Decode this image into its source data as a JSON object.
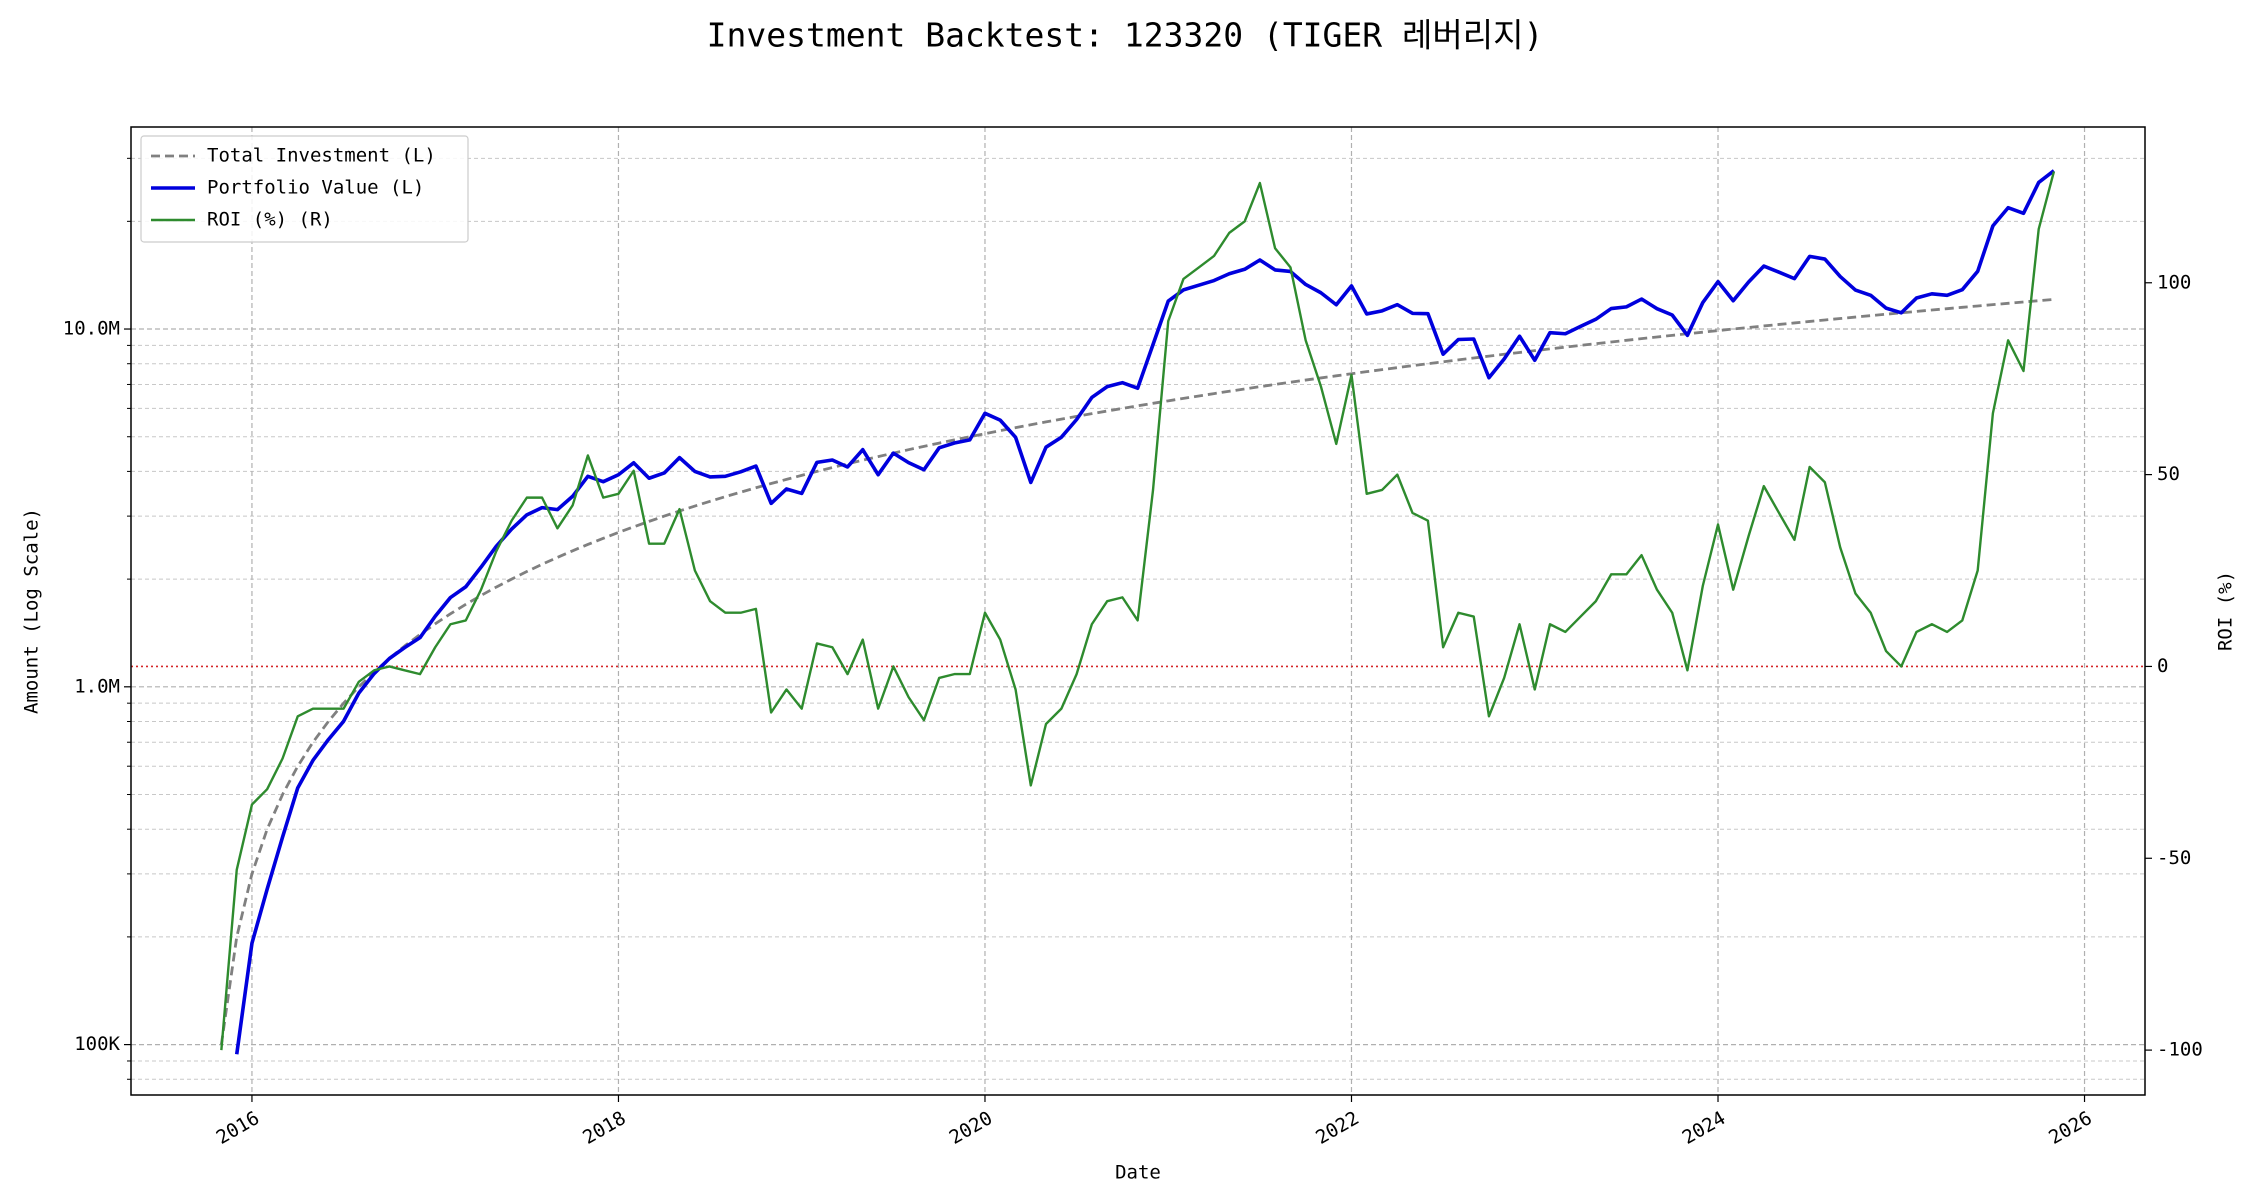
{
  "chart_data": {
    "type": "line",
    "title": "Investment Backtest: 123320 (TIGER 레버리지)",
    "x_label": "Date",
    "y_label": "Amount (Log Scale)",
    "y2_label": "ROI (%)",
    "x": [
      2015.833,
      2015.917,
      2016.0,
      2016.083,
      2016.167,
      2016.25,
      2016.333,
      2016.417,
      2016.5,
      2016.583,
      2016.667,
      2016.75,
      2016.833,
      2016.917,
      2017.0,
      2017.083,
      2017.167,
      2017.25,
      2017.333,
      2017.417,
      2017.5,
      2017.583,
      2017.667,
      2017.75,
      2017.833,
      2017.917,
      2018.0,
      2018.083,
      2018.167,
      2018.25,
      2018.333,
      2018.417,
      2018.5,
      2018.583,
      2018.667,
      2018.75,
      2018.833,
      2018.917,
      2019.0,
      2019.083,
      2019.167,
      2019.25,
      2019.333,
      2019.417,
      2019.5,
      2019.583,
      2019.667,
      2019.75,
      2019.833,
      2019.917,
      2020.0,
      2020.083,
      2020.167,
      2020.25,
      2020.333,
      2020.417,
      2020.5,
      2020.583,
      2020.667,
      2020.75,
      2020.833,
      2020.917,
      2021.0,
      2021.083,
      2021.167,
      2021.25,
      2021.333,
      2021.417,
      2021.5,
      2021.583,
      2021.667,
      2021.75,
      2021.833,
      2021.917,
      2022.0,
      2022.083,
      2022.167,
      2022.25,
      2022.333,
      2022.417,
      2022.5,
      2022.583,
      2022.667,
      2022.75,
      2022.833,
      2022.917,
      2023.0,
      2023.083,
      2023.167,
      2023.25,
      2023.333,
      2023.417,
      2023.5,
      2023.583,
      2023.667,
      2023.75,
      2023.833,
      2023.917,
      2024.0,
      2024.083,
      2024.167,
      2024.25,
      2024.333,
      2024.417,
      2024.5,
      2024.583,
      2024.667,
      2024.75,
      2024.833,
      2024.917,
      2025.0,
      2025.083,
      2025.167,
      2025.25,
      2025.333,
      2025.417,
      2025.5,
      2025.583,
      2025.667,
      2025.75,
      2025.833
    ],
    "series": [
      {
        "name": "Total Investment (L)",
        "color": "#808080",
        "dash": true,
        "axis": "y",
        "values": [
          100000,
          200000,
          300000,
          400000,
          500000,
          600000,
          700000,
          800000,
          900000,
          1000000,
          1100000,
          1200000,
          1300000,
          1400000,
          1500000,
          1600000,
          1700000,
          1800000,
          1900000,
          2000000,
          2100000,
          2200000,
          2300000,
          2400000,
          2500000,
          2600000,
          2700000,
          2800000,
          2900000,
          3000000,
          3100000,
          3200000,
          3300000,
          3400000,
          3500000,
          3600000,
          3700000,
          3800000,
          3900000,
          4000000,
          4100000,
          4200000,
          4300000,
          4400000,
          4500000,
          4600000,
          4700000,
          4800000,
          4900000,
          5000000,
          5100000,
          5200000,
          5300000,
          5400000,
          5500000,
          5600000,
          5700000,
          5800000,
          5900000,
          6000000,
          6100000,
          6200000,
          6300000,
          6400000,
          6500000,
          6600000,
          6700000,
          6800000,
          6900000,
          7000000,
          7100000,
          7200000,
          7300000,
          7400000,
          7500000,
          7600000,
          7700000,
          7800000,
          7900000,
          8000000,
          8100000,
          8200000,
          8300000,
          8400000,
          8500000,
          8600000,
          8700000,
          8800000,
          8900000,
          9000000,
          9100000,
          9200000,
          9300000,
          9400000,
          9500000,
          9600000,
          9700000,
          9800000,
          9900000,
          10000000,
          10100000,
          10200000,
          10300000,
          10400000,
          10500000,
          10600000,
          10700000,
          10800000,
          10900000,
          11000000,
          11100000,
          11200000,
          11300000,
          11400000,
          11500000,
          11600000,
          11700000,
          11800000,
          11900000,
          12000000,
          12100000
        ]
      },
      {
        "name": "Portfolio Value (L)",
        "color": "#0000dd",
        "axis": "y",
        "values": [
          null,
          94000,
          192000,
          272000,
          380000,
          522000,
          623000,
          712000,
          801000,
          960000,
          1089000,
          1200000,
          1287000,
          1372000,
          1575000,
          1776000,
          1904000,
          2160000,
          2470000,
          2760000,
          3024000,
          3168000,
          3128000,
          3408000,
          3875000,
          3744000,
          3915000,
          4228000,
          3828000,
          3960000,
          4371000,
          4000000,
          3861000,
          3876000,
          3990000,
          4140000,
          3256000,
          3572000,
          3471000,
          4240000,
          4305000,
          4116000,
          4601000,
          3916000,
          4500000,
          4232000,
          4042000,
          4656000,
          4802000,
          4900000,
          5814000,
          5564000,
          4982000,
          3726000,
          4675000,
          4984000,
          5586000,
          6438000,
          6903000,
          7080000,
          6832000,
          9052000,
          11970000,
          12864000,
          13260000,
          13662000,
          14271000,
          14688000,
          15594000,
          14630000,
          14484000,
          13320000,
          12629000,
          11692000,
          13200000,
          11020000,
          11242000,
          11700000,
          11060000,
          11040000,
          8505000,
          9348000,
          9379000,
          7308000,
          8245000,
          9546000,
          8178000,
          9768000,
          9701000,
          10170000,
          10647000,
          11408000,
          11532000,
          12126000,
          11400000,
          10944000,
          9603000,
          11858000,
          13563000,
          12000000,
          13534000,
          14994000,
          14420000,
          13832000,
          15960000,
          15688000,
          14017000,
          12852000,
          12426000,
          11440000,
          11100000,
          12208000,
          12543000,
          12426000,
          12880000,
          14500000,
          19422000,
          21830000,
          21063000,
          25680000,
          27709000
        ]
      },
      {
        "name": "ROI (%) (R)",
        "color": "#2e8b2e",
        "axis": "y2",
        "values": [
          -100,
          -53,
          -36,
          -32,
          -24,
          -13,
          -11,
          -11,
          -11,
          -4,
          -1,
          0,
          -1,
          -2,
          5,
          11,
          12,
          20,
          30,
          38,
          44,
          44,
          36,
          42,
          55,
          44,
          45,
          51,
          32,
          32,
          41,
          25,
          17,
          14,
          14,
          15,
          -12,
          -6,
          -11,
          6,
          5,
          -2,
          7,
          -11,
          0,
          -8,
          -14,
          -3,
          -2,
          -2,
          14,
          7,
          -6,
          -31,
          -15,
          -11,
          -2,
          11,
          17,
          18,
          12,
          46,
          90,
          101,
          104,
          107,
          113,
          116,
          126,
          109,
          104,
          85,
          73,
          58,
          76,
          45,
          46,
          50,
          40,
          38,
          5,
          14,
          13,
          -13,
          -3,
          11,
          -6,
          11,
          9,
          13,
          17,
          24,
          24,
          29,
          20,
          14,
          -1,
          21,
          37,
          20,
          34,
          47,
          40,
          33,
          52,
          48,
          31,
          19,
          14,
          4,
          0,
          9,
          11,
          9,
          12,
          25,
          66,
          85,
          77,
          114,
          129
        ]
      }
    ],
    "xlim": [
      2015.34,
      2026.33
    ],
    "xticks": [
      2016,
      2018,
      2020,
      2022,
      2024,
      2026
    ],
    "ylog": true,
    "ylim": [
      72300,
      36700000
    ],
    "y_color": "#0000dd",
    "yticks": [
      {
        "value": 100000,
        "label": "100K"
      },
      {
        "value": 1000000,
        "label": "1.0M"
      },
      {
        "value": 10000000,
        "label": "10.0M"
      }
    ],
    "yminorticks": [
      80000,
      90000,
      200000,
      300000,
      400000,
      500000,
      600000,
      700000,
      800000,
      900000,
      2000000,
      3000000,
      4000000,
      5000000,
      6000000,
      7000000,
      8000000,
      9000000,
      20000000,
      30000000
    ],
    "y2lim": [
      -111.7,
      140.6
    ],
    "y2ticks": [
      -100,
      -50,
      0,
      50,
      100
    ],
    "y2_color": "#2e8b2e",
    "reference_line": {
      "axis": "y2",
      "value": 0,
      "color": "#d62728"
    },
    "grid": true,
    "legend": "upper left"
  }
}
